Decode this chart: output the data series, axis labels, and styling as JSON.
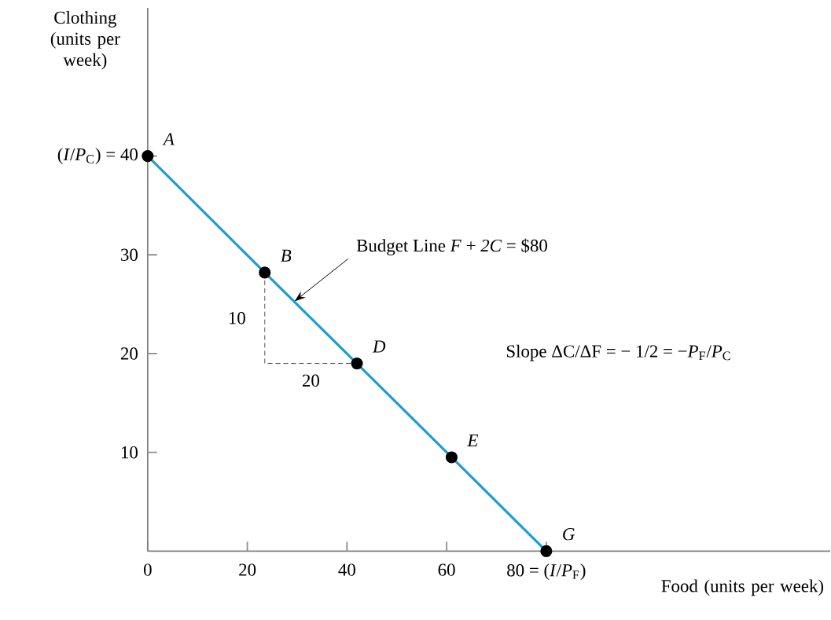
{
  "chart_data": {
    "type": "line",
    "ylabel": "Clothing (units per week)",
    "xlabel": "Food (units per week)",
    "xlim": [
      0,
      137
    ],
    "ylim": [
      0,
      55
    ],
    "xticks": [
      0,
      20,
      40,
      60,
      {
        "value": 80,
        "label": "80 = (*I*/*P*$_{F}$)"
      }
    ],
    "yticks": [
      10,
      20,
      30,
      {
        "value": 40,
        "label": "(*I*/*P*$_{C}$) = 40"
      }
    ],
    "series": [
      {
        "color": "#1e9bd7",
        "marker": "circle",
        "line_style": "solid",
        "x": [
          0,
          23.5,
          42,
          61,
          80
        ],
        "values": [
          40,
          28.2,
          19,
          9.5,
          0
        ]
      },
      {
        "color": "#555555",
        "marker": "none",
        "line_style": "dashed",
        "x": [
          23.5,
          23.5,
          42
        ],
        "values": [
          28.2,
          19,
          19
        ]
      }
    ],
    "annotations": [
      {
        "text": "*A*",
        "x": 0,
        "y": 40
      },
      {
        "text": "*B*",
        "x": 23.5,
        "y": 28.2
      },
      {
        "text": "*D*",
        "x": 42,
        "y": 19
      },
      {
        "text": "*E*",
        "x": 61,
        "y": 9.5
      },
      {
        "text": "*G*",
        "x": 80,
        "y": 0
      },
      {
        "text": "10",
        "x": 23.5,
        "y": 23.6
      },
      {
        "text": "20",
        "x": 32.75,
        "y": 19
      },
      {
        "text": "Budget Line  *F* + *2C* = $80",
        "x": 29.5,
        "y": 25.3
      },
      "Slope  ΔC/ΔF = − 1/2 = −*P*$_{F}$/*P*$_{C}$"
    ]
  }
}
